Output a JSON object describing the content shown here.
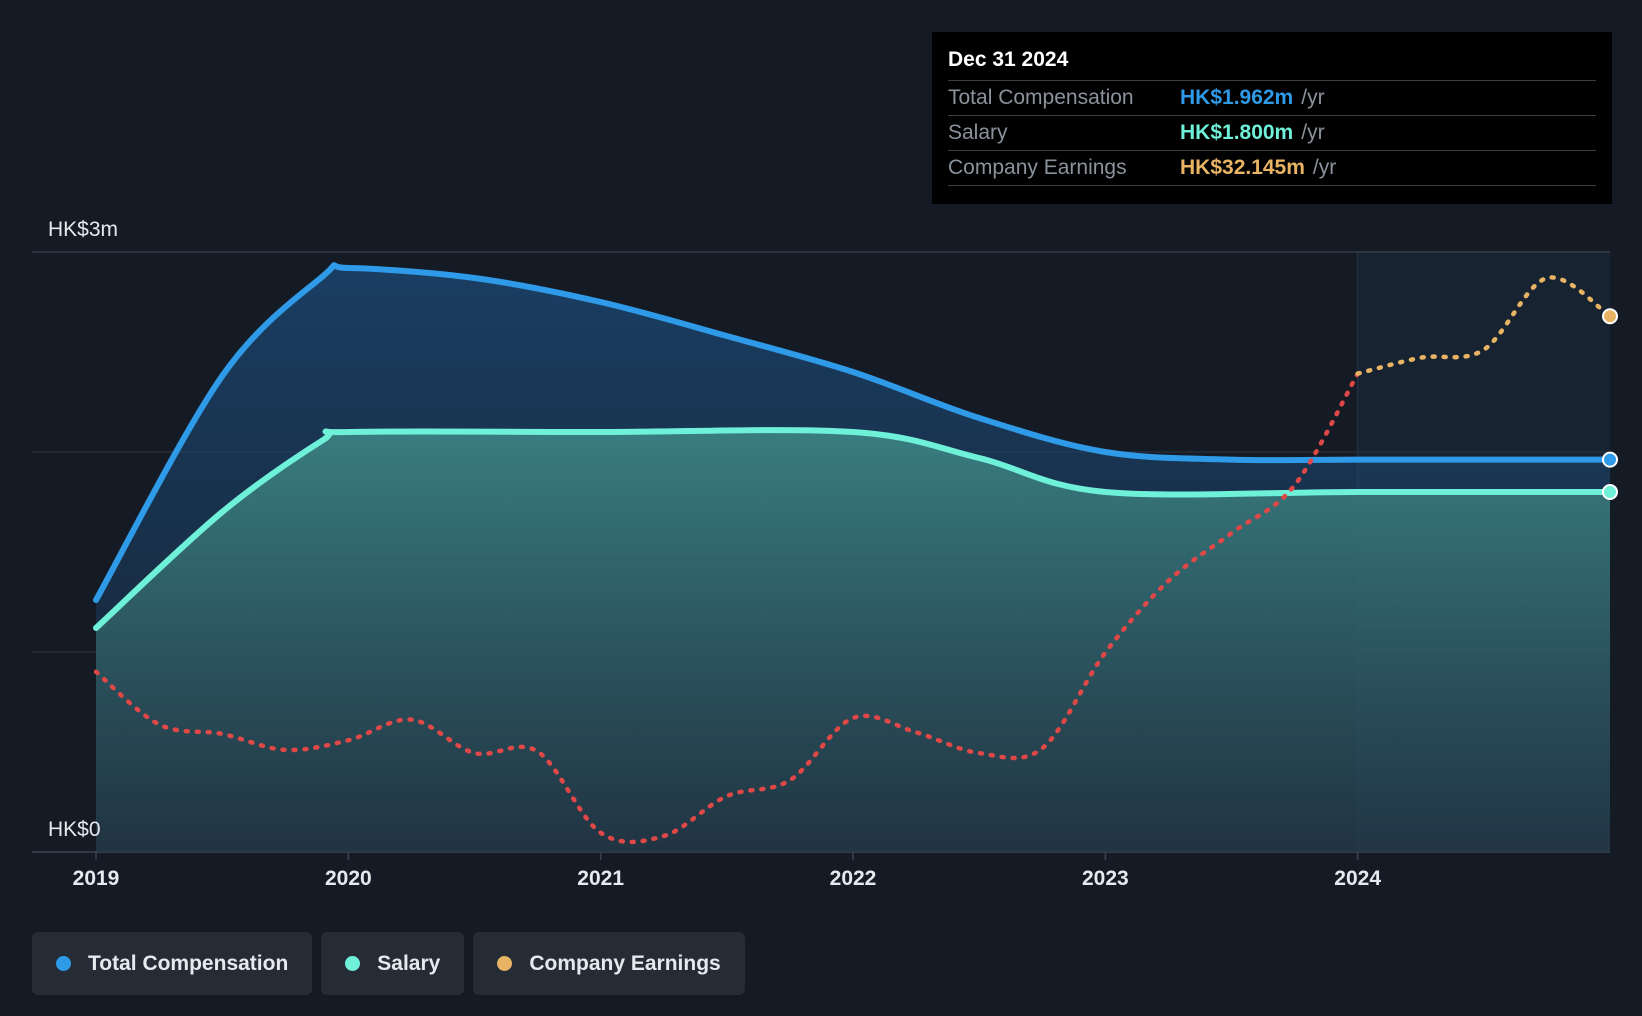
{
  "tooltip": {
    "date": "Dec 31 2024",
    "rows": [
      {
        "label": "Total Compensation",
        "value": "HK$1.962m",
        "unit": "/yr",
        "color": "#2e9ae8"
      },
      {
        "label": "Salary",
        "value": "HK$1.800m",
        "unit": "/yr",
        "color": "#6ff0d8"
      },
      {
        "label": "Company Earnings",
        "value": "HK$32.145m",
        "unit": "/yr",
        "color": "#e8b464"
      }
    ]
  },
  "legend": [
    {
      "label": "Total Compensation",
      "color": "#2e9ae8"
    },
    {
      "label": "Salary",
      "color": "#6ff0d8"
    },
    {
      "label": "Company Earnings",
      "color": "#e8b464"
    }
  ],
  "chart_data": {
    "type": "area",
    "y_axis_labels": [
      "HK$3m",
      "HK$0"
    ],
    "ylim": [
      0,
      3.0
    ],
    "xlim": [
      2019.0,
      2025.0
    ],
    "x_ticks": [
      "2019",
      "2020",
      "2021",
      "2022",
      "2023",
      "2024"
    ],
    "forecast_shading_from": 2024.0,
    "grid": true,
    "legend_position": "bottom-left",
    "series": [
      {
        "name": "Total Compensation",
        "color": "#2e9ae8",
        "x": [
          2019.0,
          2019.5,
          2019.9,
          2020.0,
          2020.5,
          2021.0,
          2021.5,
          2022.0,
          2022.5,
          2023.0,
          2023.5,
          2024.0,
          2024.5,
          2025.0
        ],
        "values": [
          1.26,
          2.38,
          2.88,
          2.92,
          2.87,
          2.75,
          2.58,
          2.4,
          2.17,
          2.0,
          1.962,
          1.962,
          1.962,
          1.962
        ]
      },
      {
        "name": "Salary",
        "color": "#6ff0d8",
        "x": [
          2019.0,
          2019.5,
          2019.9,
          2020.0,
          2021.0,
          2022.0,
          2022.5,
          2023.0,
          2024.0,
          2025.0
        ],
        "values": [
          1.12,
          1.7,
          2.06,
          2.1,
          2.1,
          2.1,
          1.97,
          1.8,
          1.8,
          1.8
        ]
      },
      {
        "name": "Company Earnings",
        "color": "#e8b464",
        "negative_color": "#e04848",
        "dashed": true,
        "x": [
          2019.0,
          2019.25,
          2019.5,
          2019.75,
          2020.0,
          2020.25,
          2020.5,
          2020.75,
          2021.0,
          2021.25,
          2021.5,
          2021.75,
          2022.0,
          2022.25,
          2022.5,
          2022.75,
          2023.0,
          2023.25,
          2023.5,
          2023.75,
          2024.0,
          2024.25,
          2024.5,
          2024.75,
          2025.0
        ],
        "values": [
          9.8,
          6.5,
          5.9,
          4.9,
          5.5,
          6.8,
          4.7,
          4.8,
          -0.3,
          -0.5,
          2.0,
          3.0,
          6.9,
          6.0,
          4.7,
          5.0,
          11.0,
          15.5,
          18.5,
          21.5,
          28.5,
          29.5,
          30.0,
          34.5,
          32.1
        ]
      }
    ]
  }
}
